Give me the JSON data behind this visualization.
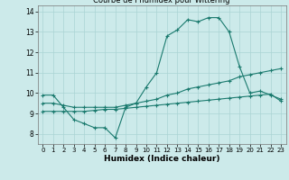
{
  "title": "Courbe de l’humidex pour Wittering",
  "xlabel": "Humidex (Indice chaleur)",
  "xlim": [
    -0.5,
    23.5
  ],
  "ylim": [
    7.5,
    14.3
  ],
  "xticks": [
    0,
    1,
    2,
    3,
    4,
    5,
    6,
    7,
    8,
    9,
    10,
    11,
    12,
    13,
    14,
    15,
    16,
    17,
    18,
    19,
    20,
    21,
    22,
    23
  ],
  "yticks": [
    8,
    9,
    10,
    11,
    12,
    13,
    14
  ],
  "bg_color": "#cceaea",
  "line_color": "#1a7a6e",
  "grid_color": "#aad4d4",
  "series": [
    {
      "x": [
        0,
        1,
        2,
        3,
        4,
        5,
        6,
        7,
        8,
        9,
        10,
        11,
        12,
        13,
        14,
        15,
        16,
        17,
        18,
        19,
        20,
        21,
        22,
        23
      ],
      "y": [
        9.9,
        9.9,
        9.3,
        8.7,
        8.5,
        8.3,
        8.3,
        7.8,
        9.3,
        9.5,
        10.3,
        11.0,
        12.8,
        13.1,
        13.6,
        13.5,
        13.7,
        13.7,
        13.0,
        11.3,
        10.0,
        10.1,
        9.9,
        9.7
      ]
    },
    {
      "x": [
        0,
        1,
        2,
        3,
        4,
        5,
        6,
        7,
        8,
        9,
        10,
        11,
        12,
        13,
        14,
        15,
        16,
        17,
        18,
        19,
        20,
        21,
        22,
        23
      ],
      "y": [
        9.5,
        9.5,
        9.4,
        9.3,
        9.3,
        9.3,
        9.3,
        9.3,
        9.4,
        9.5,
        9.6,
        9.7,
        9.9,
        10.0,
        10.2,
        10.3,
        10.4,
        10.5,
        10.6,
        10.8,
        10.9,
        11.0,
        11.1,
        11.2
      ]
    },
    {
      "x": [
        0,
        1,
        2,
        3,
        4,
        5,
        6,
        7,
        8,
        9,
        10,
        11,
        12,
        13,
        14,
        15,
        16,
        17,
        18,
        19,
        20,
        21,
        22,
        23
      ],
      "y": [
        9.1,
        9.1,
        9.1,
        9.1,
        9.1,
        9.15,
        9.2,
        9.2,
        9.25,
        9.3,
        9.35,
        9.4,
        9.45,
        9.5,
        9.55,
        9.6,
        9.65,
        9.7,
        9.75,
        9.8,
        9.85,
        9.9,
        9.95,
        9.6
      ]
    }
  ]
}
